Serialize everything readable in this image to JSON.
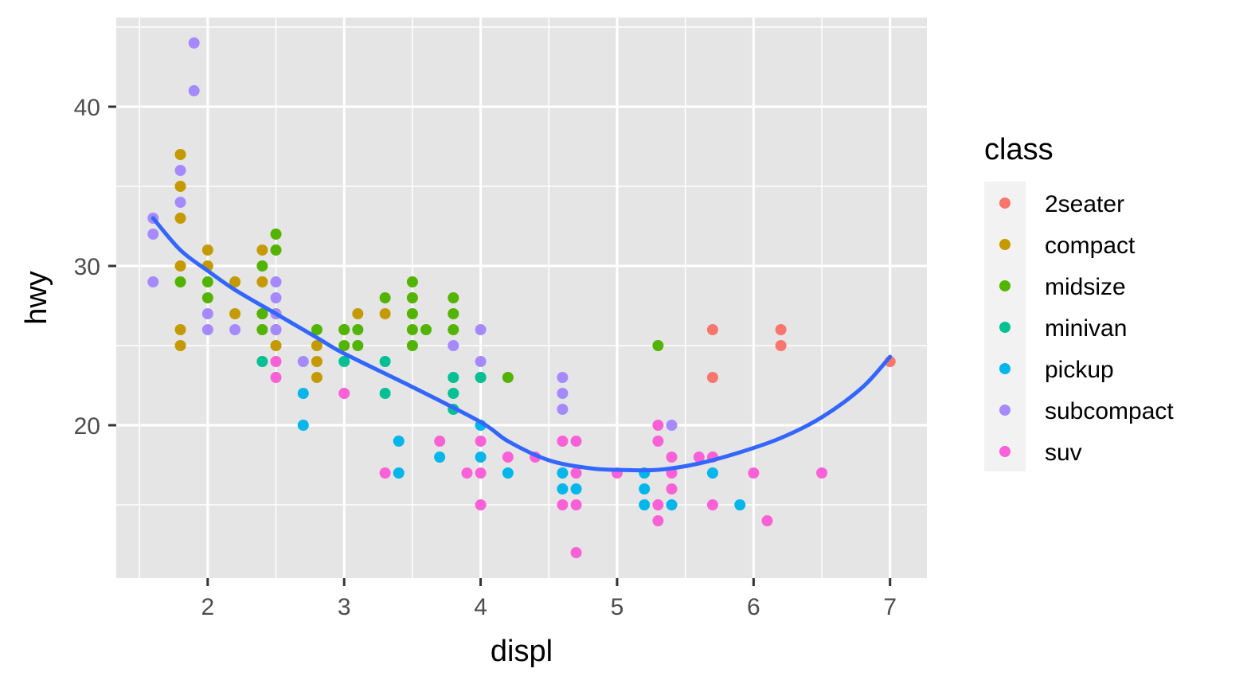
{
  "chart_data": {
    "type": "scatter",
    "xlabel": "displ",
    "ylabel": "hwy",
    "xlim": [
      1.33,
      7.27
    ],
    "ylim": [
      10.4,
      45.6
    ],
    "x_ticks": [
      2,
      3,
      4,
      5,
      6,
      7
    ],
    "y_ticks": [
      20,
      30,
      40
    ],
    "x_tick_labels": [
      "2",
      "3",
      "4",
      "5",
      "6",
      "7"
    ],
    "y_tick_labels": [
      "20",
      "30",
      "40"
    ],
    "grid": true,
    "background": "#e5e5e5",
    "legend": {
      "title": "class",
      "position": "right",
      "entries": [
        {
          "label": "2seater",
          "color": "#F8766D"
        },
        {
          "label": "compact",
          "color": "#C49A00"
        },
        {
          "label": "midsize",
          "color": "#53B400"
        },
        {
          "label": "minivan",
          "color": "#00C094"
        },
        {
          "label": "pickup",
          "color": "#00B6EB"
        },
        {
          "label": "subcompact",
          "color": "#A58AFF"
        },
        {
          "label": "suv",
          "color": "#FB61D7"
        }
      ]
    },
    "series": [
      {
        "name": "2seater",
        "color": "#F8766D",
        "points": [
          [
            5.7,
            26
          ],
          [
            5.7,
            23
          ],
          [
            6.2,
            26
          ],
          [
            6.2,
            25
          ],
          [
            7.0,
            24
          ]
        ]
      },
      {
        "name": "compact",
        "color": "#C49A00",
        "points": [
          [
            1.8,
            37
          ],
          [
            1.8,
            35
          ],
          [
            1.8,
            33
          ],
          [
            1.8,
            30
          ],
          [
            1.8,
            26
          ],
          [
            1.8,
            25
          ],
          [
            2.0,
            31
          ],
          [
            2.0,
            30
          ],
          [
            2.2,
            29
          ],
          [
            2.2,
            27
          ],
          [
            2.4,
            31
          ],
          [
            2.4,
            29
          ],
          [
            2.4,
            27
          ],
          [
            2.5,
            27
          ],
          [
            2.5,
            26
          ],
          [
            2.5,
            25
          ],
          [
            2.8,
            25
          ],
          [
            2.8,
            24
          ],
          [
            2.8,
            23
          ],
          [
            3.0,
            26
          ],
          [
            3.1,
            27
          ],
          [
            3.3,
            27
          ]
        ]
      },
      {
        "name": "midsize",
        "color": "#53B400",
        "points": [
          [
            1.8,
            29
          ],
          [
            2.0,
            29
          ],
          [
            2.0,
            28
          ],
          [
            2.4,
            30
          ],
          [
            2.4,
            27
          ],
          [
            2.4,
            26
          ],
          [
            2.5,
            32
          ],
          [
            2.5,
            31
          ],
          [
            2.8,
            26
          ],
          [
            3.0,
            26
          ],
          [
            3.0,
            25
          ],
          [
            3.1,
            26
          ],
          [
            3.1,
            25
          ],
          [
            3.3,
            28
          ],
          [
            3.5,
            29
          ],
          [
            3.5,
            28
          ],
          [
            3.5,
            27
          ],
          [
            3.5,
            26
          ],
          [
            3.5,
            25
          ],
          [
            3.6,
            26
          ],
          [
            3.8,
            28
          ],
          [
            3.8,
            27
          ],
          [
            3.8,
            26
          ],
          [
            4.0,
            23
          ],
          [
            4.2,
            23
          ],
          [
            5.3,
            25
          ]
        ]
      },
      {
        "name": "minivan",
        "color": "#00C094",
        "points": [
          [
            2.4,
            24
          ],
          [
            3.0,
            24
          ],
          [
            3.3,
            24
          ],
          [
            3.3,
            22
          ],
          [
            3.8,
            23
          ],
          [
            3.8,
            22
          ],
          [
            3.8,
            21
          ],
          [
            4.0,
            23
          ]
        ]
      },
      {
        "name": "pickup",
        "color": "#00B6EB",
        "points": [
          [
            2.7,
            22
          ],
          [
            2.7,
            20
          ],
          [
            3.4,
            19
          ],
          [
            3.4,
            17
          ],
          [
            3.7,
            18
          ],
          [
            4.0,
            20
          ],
          [
            4.0,
            18
          ],
          [
            4.2,
            17
          ],
          [
            4.6,
            17
          ],
          [
            4.6,
            16
          ],
          [
            4.7,
            16
          ],
          [
            5.2,
            17
          ],
          [
            5.2,
            16
          ],
          [
            5.2,
            15
          ],
          [
            5.4,
            15
          ],
          [
            5.7,
            17
          ],
          [
            5.9,
            15
          ]
        ]
      },
      {
        "name": "subcompact",
        "color": "#A58AFF",
        "points": [
          [
            1.6,
            33
          ],
          [
            1.6,
            32
          ],
          [
            1.6,
            29
          ],
          [
            1.8,
            36
          ],
          [
            1.8,
            34
          ],
          [
            1.9,
            44
          ],
          [
            1.9,
            41
          ],
          [
            2.0,
            27
          ],
          [
            2.0,
            26
          ],
          [
            2.2,
            26
          ],
          [
            2.5,
            29
          ],
          [
            2.5,
            28
          ],
          [
            2.5,
            27
          ],
          [
            2.5,
            26
          ],
          [
            2.7,
            24
          ],
          [
            3.8,
            25
          ],
          [
            4.0,
            26
          ],
          [
            4.0,
            24
          ],
          [
            4.6,
            23
          ],
          [
            4.6,
            22
          ],
          [
            4.6,
            21
          ],
          [
            5.4,
            20
          ]
        ]
      },
      {
        "name": "suv",
        "color": "#FB61D7",
        "points": [
          [
            2.5,
            24
          ],
          [
            2.5,
            23
          ],
          [
            3.0,
            22
          ],
          [
            3.3,
            17
          ],
          [
            3.7,
            19
          ],
          [
            3.9,
            17
          ],
          [
            4.0,
            19
          ],
          [
            4.0,
            17
          ],
          [
            4.0,
            15
          ],
          [
            4.2,
            18
          ],
          [
            4.4,
            18
          ],
          [
            4.6,
            19
          ],
          [
            4.6,
            15
          ],
          [
            4.7,
            19
          ],
          [
            4.7,
            17
          ],
          [
            4.7,
            15
          ],
          [
            4.7,
            12
          ],
          [
            5.0,
            17
          ],
          [
            5.3,
            20
          ],
          [
            5.3,
            19
          ],
          [
            5.3,
            15
          ],
          [
            5.3,
            14
          ],
          [
            5.4,
            18
          ],
          [
            5.4,
            17
          ],
          [
            5.4,
            16
          ],
          [
            5.6,
            18
          ],
          [
            5.7,
            18
          ],
          [
            5.7,
            15
          ],
          [
            6.0,
            17
          ],
          [
            6.1,
            14
          ],
          [
            6.5,
            17
          ]
        ]
      }
    ],
    "smooth": {
      "color": "#3366FF",
      "points": [
        [
          1.6,
          33.0
        ],
        [
          1.8,
          31.0
        ],
        [
          2.0,
          29.7
        ],
        [
          2.2,
          28.5
        ],
        [
          2.5,
          27.0
        ],
        [
          2.8,
          25.5
        ],
        [
          3.0,
          24.5
        ],
        [
          3.5,
          22.4
        ],
        [
          4.0,
          20.2
        ],
        [
          4.2,
          19.0
        ],
        [
          4.5,
          17.8
        ],
        [
          4.8,
          17.3
        ],
        [
          5.0,
          17.2
        ],
        [
          5.3,
          17.2
        ],
        [
          5.6,
          17.6
        ],
        [
          5.9,
          18.3
        ],
        [
          6.2,
          19.2
        ],
        [
          6.5,
          20.5
        ],
        [
          6.8,
          22.4
        ],
        [
          7.0,
          24.3
        ]
      ]
    }
  }
}
